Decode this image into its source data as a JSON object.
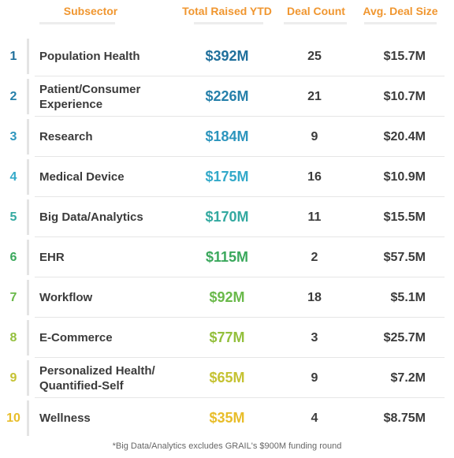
{
  "chart_data": {
    "type": "table",
    "columns": [
      "Subsector",
      "Total Raised YTD",
      "Deal Count",
      "Avg. Deal Size"
    ],
    "rows": [
      {
        "rank": "1",
        "subsector": "Population Health",
        "total_raised": "$392M",
        "deal_count": "25",
        "avg_deal_size": "$15.7M",
        "color": "#1f6f9b"
      },
      {
        "rank": "2",
        "subsector": "Patient/Consumer Experience",
        "total_raised": "$226M",
        "deal_count": "21",
        "avg_deal_size": "$10.7M",
        "color": "#2680aa"
      },
      {
        "rank": "3",
        "subsector": "Research",
        "total_raised": "$184M",
        "deal_count": "9",
        "avg_deal_size": "$20.4M",
        "color": "#2c95bd"
      },
      {
        "rank": "4",
        "subsector": "Medical Device",
        "total_raised": "$175M",
        "deal_count": "16",
        "avg_deal_size": "$10.9M",
        "color": "#33a9c9"
      },
      {
        "rank": "5",
        "subsector": "Big Data/Analytics",
        "total_raised": "$170M",
        "deal_count": "11",
        "avg_deal_size": "$15.5M",
        "color": "#33a9a0"
      },
      {
        "rank": "6",
        "subsector": "EHR",
        "total_raised": "$115M",
        "deal_count": "2",
        "avg_deal_size": "$57.5M",
        "color": "#3aa85c"
      },
      {
        "rank": "7",
        "subsector": "Workflow",
        "total_raised": "$92M",
        "deal_count": "18",
        "avg_deal_size": "$5.1M",
        "color": "#6ab94a"
      },
      {
        "rank": "8",
        "subsector": "E-Commerce",
        "total_raised": "$77M",
        "deal_count": "3",
        "avg_deal_size": "$25.7M",
        "color": "#93bf3c"
      },
      {
        "rank": "9",
        "subsector": "Personalized Health/ Quantified-Self",
        "total_raised": "$65M",
        "deal_count": "9",
        "avg_deal_size": "$7.2M",
        "color": "#c5c232"
      },
      {
        "rank": "10",
        "subsector": "Wellness",
        "total_raised": "$35M",
        "deal_count": "4",
        "avg_deal_size": "$8.75M",
        "color": "#e8bd2a"
      }
    ],
    "footnote": "*Big Data/Analytics excludes GRAIL's $900M funding round",
    "header_color": "#f0962f"
  }
}
